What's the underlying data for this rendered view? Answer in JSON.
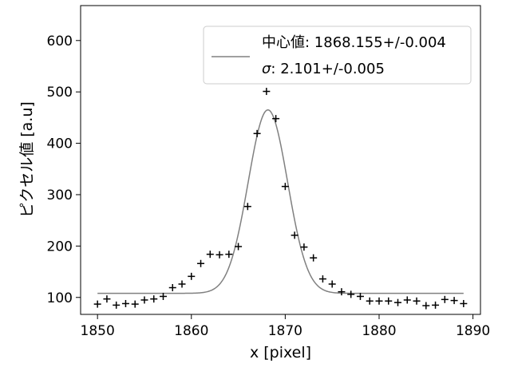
{
  "chart_data": {
    "type": "scatter",
    "xlabel": "x [pixel]",
    "ylabel": "ピクセル値 [a.u]",
    "xlim": [
      1848.2,
      1890.8
    ],
    "ylim": [
      67,
      668
    ],
    "x_ticks": [
      1850,
      1860,
      1870,
      1880,
      1890
    ],
    "y_ticks": [
      100,
      200,
      300,
      400,
      500,
      600
    ],
    "grid": false,
    "legend_position": "top-right",
    "legend": {
      "line1": "中心値: 1868.155+/-0.004",
      "line2_symbol": "σ",
      "line2_value": ": 2.101+/-0.005"
    },
    "fit": {
      "model": "gaussian",
      "center": 1868.155,
      "sigma": 2.101,
      "amplitude": 357,
      "baseline": 108,
      "x_range": [
        1850,
        1889
      ],
      "color": "#808080"
    },
    "series": [
      {
        "marker": "+",
        "color": "#000000",
        "x": [
          1850,
          1851,
          1852,
          1853,
          1854,
          1855,
          1856,
          1857,
          1858,
          1859,
          1860,
          1861,
          1862,
          1863,
          1864,
          1865,
          1866,
          1867,
          1868,
          1869,
          1870,
          1871,
          1872,
          1873,
          1874,
          1875,
          1876,
          1877,
          1878,
          1879,
          1880,
          1881,
          1882,
          1883,
          1884,
          1885,
          1886,
          1887,
          1888,
          1889
        ],
        "y": [
          87,
          97,
          85,
          88,
          87,
          95,
          97,
          102,
          119,
          126,
          141,
          166,
          184,
          183,
          184,
          199,
          277,
          419,
          501,
          448,
          316,
          221,
          198,
          177,
          136,
          126,
          111,
          106,
          102,
          93,
          93,
          93,
          90,
          95,
          93,
          84,
          85,
          96,
          94,
          88
        ]
      }
    ]
  }
}
